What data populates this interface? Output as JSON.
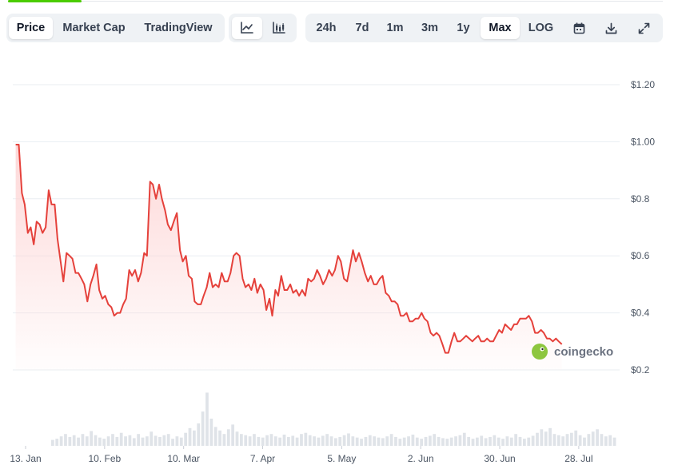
{
  "toolbar": {
    "view_tabs": [
      "Price",
      "Market Cap",
      "TradingView"
    ],
    "range_tabs": [
      "24h",
      "7d",
      "1m",
      "3m",
      "1y",
      "Max"
    ],
    "log_label": "LOG",
    "active_view": "Price",
    "active_range": "Max",
    "chart_type_icons": [
      "line-chart-icon",
      "candlestick-chart-icon"
    ],
    "action_icons": [
      "calendar-icon",
      "download-icon",
      "fullscreen-icon"
    ]
  },
  "watermark": "coingecko",
  "colors": {
    "line": "#e5413b",
    "fill": "#fdd6d6",
    "volume": "#dfe3e8",
    "grid": "#eaeef2",
    "accent": "#4bcc00"
  },
  "chart_data": {
    "type": "area",
    "title": "",
    "xlabel": "",
    "ylabel": "",
    "ylim": [
      0.1,
      1.3
    ],
    "y_ticks": [
      "$0.2",
      "$0.4",
      "$0.6",
      "$0.8",
      "$1.00",
      "$1.20"
    ],
    "y_tick_values": [
      0.2,
      0.4,
      0.6,
      0.8,
      1.0,
      1.2
    ],
    "x_ticks": [
      "13. Jan",
      "10. Feb",
      "10. Mar",
      "7. Apr",
      "5. May",
      "2. Jun",
      "30. Jun",
      "28. Jul"
    ],
    "x_tick_days": [
      0,
      28,
      56,
      84,
      112,
      140,
      168,
      196
    ],
    "grid": true,
    "series": [
      {
        "points": [
          [
            -3.5,
            0.99
          ],
          [
            -2.4,
            0.99
          ],
          [
            -1.3,
            0.82
          ],
          [
            -0.3,
            0.78
          ],
          [
            0.8,
            0.68
          ],
          [
            1.8,
            0.7
          ],
          [
            2.9,
            0.64
          ],
          [
            3.9,
            0.72
          ],
          [
            5,
            0.71
          ],
          [
            6,
            0.68
          ],
          [
            7.1,
            0.7
          ],
          [
            8.2,
            0.83
          ],
          [
            9.2,
            0.78
          ],
          [
            10.3,
            0.78
          ],
          [
            11.3,
            0.66
          ],
          [
            12.4,
            0.58
          ],
          [
            13.4,
            0.51
          ],
          [
            14.5,
            0.61
          ],
          [
            15.6,
            0.6
          ],
          [
            16.6,
            0.59
          ],
          [
            17.7,
            0.54
          ],
          [
            18.7,
            0.54
          ],
          [
            19.8,
            0.52
          ],
          [
            20.8,
            0.5
          ],
          [
            21.9,
            0.44
          ],
          [
            23,
            0.5
          ],
          [
            24,
            0.53
          ],
          [
            25.1,
            0.57
          ],
          [
            26.1,
            0.48
          ],
          [
            27.2,
            0.45
          ],
          [
            28.2,
            0.46
          ],
          [
            29.3,
            0.43
          ],
          [
            30.4,
            0.42
          ],
          [
            31.4,
            0.39
          ],
          [
            32.5,
            0.4
          ],
          [
            33.5,
            0.4
          ],
          [
            34.6,
            0.43
          ],
          [
            35.6,
            0.45
          ],
          [
            36.7,
            0.55
          ],
          [
            37.7,
            0.53
          ],
          [
            38.8,
            0.55
          ],
          [
            39.9,
            0.51
          ],
          [
            40.9,
            0.54
          ],
          [
            42,
            0.61
          ],
          [
            43,
            0.6
          ],
          [
            44.1,
            0.86
          ],
          [
            45.1,
            0.85
          ],
          [
            46.2,
            0.8
          ],
          [
            47.3,
            0.85
          ],
          [
            48.3,
            0.8
          ],
          [
            49.4,
            0.76
          ],
          [
            50.4,
            0.71
          ],
          [
            51.5,
            0.69
          ],
          [
            52.5,
            0.72
          ],
          [
            53.6,
            0.75
          ],
          [
            54.7,
            0.62
          ],
          [
            55.7,
            0.58
          ],
          [
            56.8,
            0.6
          ],
          [
            57.8,
            0.53
          ],
          [
            58.9,
            0.52
          ],
          [
            59.9,
            0.44
          ],
          [
            61,
            0.43
          ],
          [
            62.1,
            0.43
          ],
          [
            63.1,
            0.46
          ],
          [
            64.2,
            0.49
          ],
          [
            65.2,
            0.54
          ],
          [
            66.3,
            0.49
          ],
          [
            67.3,
            0.5
          ],
          [
            68.4,
            0.49
          ],
          [
            69.5,
            0.54
          ],
          [
            70.5,
            0.51
          ],
          [
            71.6,
            0.51
          ],
          [
            72.6,
            0.54
          ],
          [
            73.7,
            0.6
          ],
          [
            74.7,
            0.61
          ],
          [
            75.8,
            0.6
          ],
          [
            76.9,
            0.52
          ],
          [
            77.9,
            0.49
          ],
          [
            79,
            0.5
          ],
          [
            80,
            0.48
          ],
          [
            81.1,
            0.52
          ],
          [
            82.1,
            0.47
          ],
          [
            83.2,
            0.5
          ],
          [
            84.3,
            0.48
          ],
          [
            85.3,
            0.41
          ],
          [
            86.4,
            0.45
          ],
          [
            87.4,
            0.39
          ],
          [
            88.5,
            0.48
          ],
          [
            89.5,
            0.46
          ],
          [
            90.6,
            0.53
          ],
          [
            91.7,
            0.48
          ],
          [
            92.7,
            0.48
          ],
          [
            93.8,
            0.5
          ],
          [
            94.8,
            0.47
          ],
          [
            95.9,
            0.48
          ],
          [
            96.9,
            0.46
          ],
          [
            98,
            0.48
          ],
          [
            99.1,
            0.46
          ],
          [
            100.1,
            0.52
          ],
          [
            101.2,
            0.51
          ],
          [
            102.2,
            0.52
          ],
          [
            103.3,
            0.55
          ],
          [
            104.3,
            0.53
          ],
          [
            105.4,
            0.5
          ],
          [
            106.5,
            0.52
          ],
          [
            107.5,
            0.55
          ],
          [
            108.6,
            0.53
          ],
          [
            109.6,
            0.55
          ],
          [
            110.7,
            0.6
          ],
          [
            111.7,
            0.58
          ],
          [
            112.8,
            0.52
          ],
          [
            113.9,
            0.51
          ],
          [
            114.9,
            0.56
          ],
          [
            116,
            0.62
          ],
          [
            117,
            0.58
          ],
          [
            118.1,
            0.61
          ],
          [
            119.1,
            0.58
          ],
          [
            120.2,
            0.54
          ],
          [
            121.3,
            0.51
          ],
          [
            122.3,
            0.53
          ],
          [
            123.4,
            0.5
          ],
          [
            124.4,
            0.5
          ],
          [
            125.5,
            0.52
          ],
          [
            126.5,
            0.53
          ],
          [
            127.6,
            0.47
          ],
          [
            128.7,
            0.46
          ],
          [
            129.7,
            0.44
          ],
          [
            130.8,
            0.44
          ],
          [
            131.8,
            0.43
          ],
          [
            132.9,
            0.39
          ],
          [
            133.9,
            0.39
          ],
          [
            135,
            0.4
          ],
          [
            136.1,
            0.37
          ],
          [
            137.1,
            0.37
          ],
          [
            138.2,
            0.38
          ],
          [
            139.2,
            0.38
          ],
          [
            140.3,
            0.4
          ],
          [
            141.3,
            0.38
          ],
          [
            142.4,
            0.37
          ],
          [
            143.5,
            0.33
          ],
          [
            144.5,
            0.32
          ],
          [
            145.6,
            0.33
          ],
          [
            146.6,
            0.32
          ],
          [
            147.7,
            0.29
          ],
          [
            148.7,
            0.26
          ],
          [
            149.8,
            0.26
          ],
          [
            150.9,
            0.3
          ],
          [
            151.9,
            0.33
          ],
          [
            153,
            0.3
          ],
          [
            154,
            0.3
          ],
          [
            155.1,
            0.31
          ],
          [
            156.1,
            0.32
          ],
          [
            157.2,
            0.31
          ],
          [
            158.3,
            0.3
          ],
          [
            159.3,
            0.31
          ],
          [
            160.4,
            0.32
          ],
          [
            161.4,
            0.3
          ],
          [
            162.5,
            0.3
          ],
          [
            163.5,
            0.31
          ],
          [
            164.6,
            0.3
          ],
          [
            165.7,
            0.3
          ],
          [
            166.7,
            0.32
          ],
          [
            167.8,
            0.34
          ],
          [
            168.8,
            0.33
          ],
          [
            169.9,
            0.36
          ],
          [
            170.9,
            0.35
          ],
          [
            172,
            0.34
          ],
          [
            173.1,
            0.36
          ],
          [
            174.1,
            0.36
          ],
          [
            175.2,
            0.38
          ],
          [
            176.2,
            0.38
          ],
          [
            177.3,
            0.38
          ],
          [
            178.3,
            0.39
          ],
          [
            179.4,
            0.37
          ],
          [
            180.5,
            0.33
          ],
          [
            181.5,
            0.33
          ],
          [
            182.6,
            0.34
          ],
          [
            183.6,
            0.33
          ],
          [
            184.7,
            0.31
          ],
          [
            185.7,
            0.31
          ],
          [
            186.8,
            0.3
          ],
          [
            187.9,
            0.31
          ],
          [
            188.9,
            0.3
          ],
          [
            190,
            0.29
          ]
        ]
      }
    ],
    "volume": {
      "values": [
        0.1,
        0.12,
        0.16,
        0.2,
        0.15,
        0.18,
        0.14,
        0.2,
        0.16,
        0.25,
        0.18,
        0.14,
        0.12,
        0.16,
        0.2,
        0.15,
        0.22,
        0.16,
        0.18,
        0.13,
        0.2,
        0.14,
        0.16,
        0.24,
        0.17,
        0.15,
        0.18,
        0.2,
        0.12,
        0.16,
        0.14,
        0.22,
        0.3,
        0.26,
        0.38,
        0.58,
        0.9,
        0.46,
        0.32,
        0.26,
        0.2,
        0.28,
        0.36,
        0.24,
        0.2,
        0.18,
        0.16,
        0.2,
        0.15,
        0.14,
        0.18,
        0.2,
        0.16,
        0.14,
        0.19,
        0.15,
        0.17,
        0.14,
        0.2,
        0.22,
        0.18,
        0.16,
        0.14,
        0.17,
        0.2,
        0.16,
        0.13,
        0.15,
        0.18,
        0.21,
        0.16,
        0.14,
        0.12,
        0.15,
        0.18,
        0.16,
        0.14,
        0.13,
        0.16,
        0.2,
        0.15,
        0.12,
        0.14,
        0.16,
        0.19,
        0.14,
        0.12,
        0.15,
        0.17,
        0.2,
        0.15,
        0.13,
        0.12,
        0.14,
        0.16,
        0.18,
        0.22,
        0.15,
        0.12,
        0.14,
        0.17,
        0.13,
        0.15,
        0.18,
        0.14,
        0.12,
        0.16,
        0.14,
        0.2,
        0.15,
        0.12,
        0.14,
        0.17,
        0.22,
        0.28,
        0.24,
        0.3,
        0.2,
        0.18,
        0.16,
        0.2,
        0.22,
        0.26,
        0.18,
        0.14,
        0.2,
        0.24,
        0.28,
        0.2,
        0.16,
        0.18,
        0.14
      ]
    }
  }
}
